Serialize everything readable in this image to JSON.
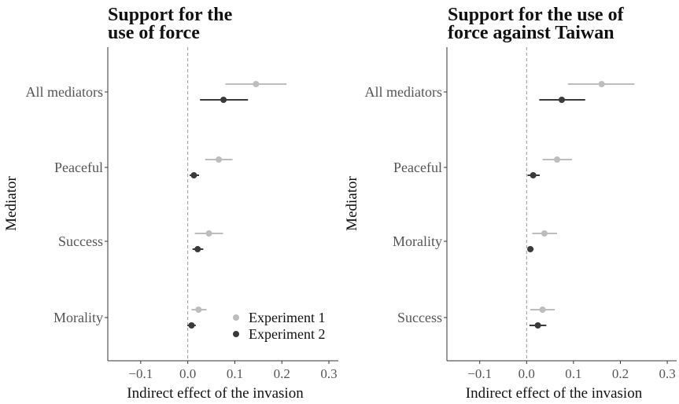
{
  "chart_data": [
    {
      "type": "scatter",
      "title": "Support for the use of force",
      "title_lines": [
        "Support for the",
        "use of force"
      ],
      "xlabel": "Indirect effect of the invasion",
      "ylabel": "Mediator",
      "xlim": [
        -0.17,
        0.32
      ],
      "xticks": [
        -0.1,
        0.0,
        0.1,
        0.2,
        0.3
      ],
      "xtick_labels": [
        "−0.1",
        "0.0",
        "0.1",
        "0.2",
        "0.3"
      ],
      "categories": [
        "All mediators",
        "Peaceful",
        "Success",
        "Morality"
      ],
      "legend_position": "bottom-right",
      "reference_line": 0,
      "series": [
        {
          "name": "Experiment 1",
          "color": "#bdbdbd",
          "points": [
            {
              "category": "All mediators",
              "estimate": 0.145,
              "lower": 0.08,
              "upper": 0.21
            },
            {
              "category": "Peaceful",
              "estimate": 0.066,
              "lower": 0.037,
              "upper": 0.095
            },
            {
              "category": "Success",
              "estimate": 0.045,
              "lower": 0.015,
              "upper": 0.075
            },
            {
              "category": "Morality",
              "estimate": 0.023,
              "lower": 0.008,
              "upper": 0.04
            }
          ]
        },
        {
          "name": "Experiment 2",
          "color": "#3a3a3a",
          "points": [
            {
              "category": "All mediators",
              "estimate": 0.076,
              "lower": 0.026,
              "upper": 0.128
            },
            {
              "category": "Peaceful",
              "estimate": 0.013,
              "lower": 0.004,
              "upper": 0.024
            },
            {
              "category": "Success",
              "estimate": 0.021,
              "lower": 0.01,
              "upper": 0.033
            },
            {
              "category": "Morality",
              "estimate": 0.008,
              "lower": -0.001,
              "upper": 0.017
            }
          ]
        }
      ]
    },
    {
      "type": "scatter",
      "title": "Support for the use of force against Taiwan",
      "title_lines": [
        "Support for the use of",
        "force against Taiwan"
      ],
      "xlabel": "Indirect effect of the invasion",
      "ylabel": "Mediator",
      "xlim": [
        -0.17,
        0.32
      ],
      "xticks": [
        -0.1,
        0.0,
        0.1,
        0.2,
        0.3
      ],
      "xtick_labels": [
        "−0.1",
        "0.0",
        "0.1",
        "0.2",
        "0.3"
      ],
      "categories": [
        "All mediators",
        "Peaceful",
        "Morality",
        "Success"
      ],
      "reference_line": 0,
      "series": [
        {
          "name": "Experiment 1",
          "color": "#bdbdbd",
          "points": [
            {
              "category": "All mediators",
              "estimate": 0.16,
              "lower": 0.088,
              "upper": 0.23
            },
            {
              "category": "Peaceful",
              "estimate": 0.065,
              "lower": 0.034,
              "upper": 0.097
            },
            {
              "category": "Morality",
              "estimate": 0.038,
              "lower": 0.012,
              "upper": 0.065
            },
            {
              "category": "Success",
              "estimate": 0.034,
              "lower": 0.008,
              "upper": 0.06
            }
          ]
        },
        {
          "name": "Experiment 2",
          "color": "#3a3a3a",
          "points": [
            {
              "category": "All mediators",
              "estimate": 0.075,
              "lower": 0.027,
              "upper": 0.125
            },
            {
              "category": "Peaceful",
              "estimate": 0.014,
              "lower": 0.002,
              "upper": 0.028
            },
            {
              "category": "Morality",
              "estimate": 0.008,
              "lower": 0.002,
              "upper": 0.015
            },
            {
              "category": "Success",
              "estimate": 0.024,
              "lower": 0.006,
              "upper": 0.042
            }
          ]
        }
      ]
    }
  ]
}
